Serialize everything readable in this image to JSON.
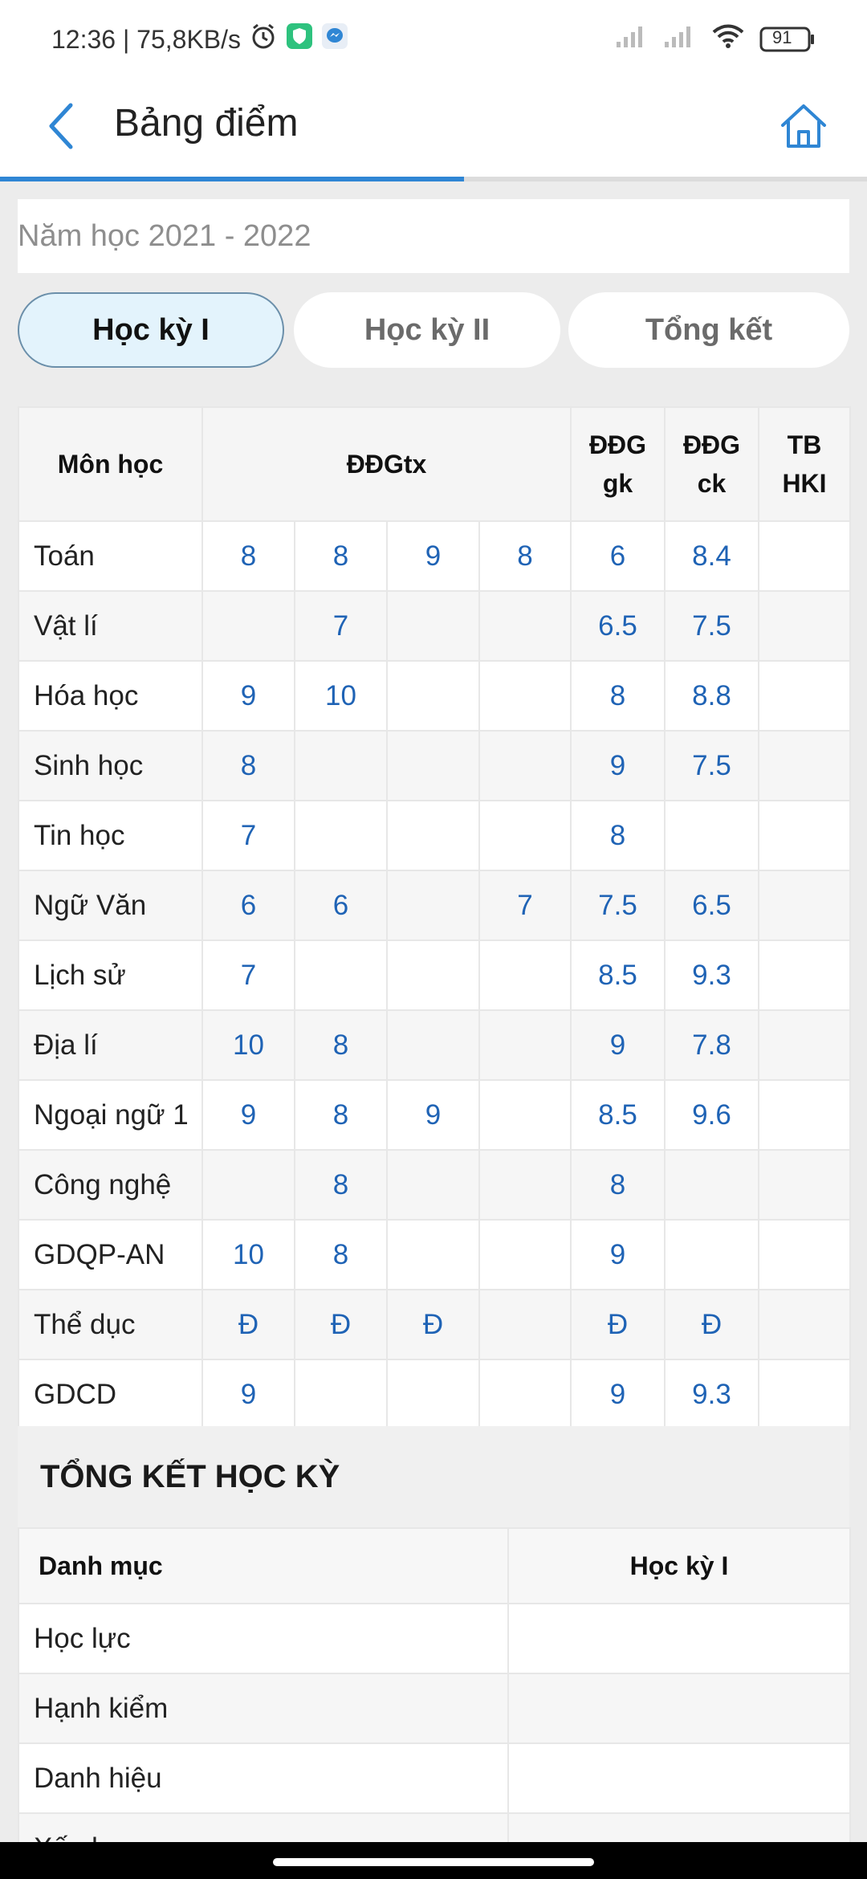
{
  "status_bar": {
    "time_and_speed": "12:36 | 75,8KB/s",
    "battery": "91"
  },
  "header": {
    "title": "Bảng điểm",
    "progress_fraction": 0.535
  },
  "year_select": {
    "value": "Năm học 2021 - 2022"
  },
  "tabs": [
    {
      "label": "Học kỳ I",
      "active": true
    },
    {
      "label": "Học kỳ II",
      "active": false
    },
    {
      "label": "Tổng kết",
      "active": false
    }
  ],
  "grades_table": {
    "headers": {
      "subject": "Môn học",
      "ddgtx": "ĐĐGtx",
      "ddggk": "ĐĐG gk",
      "ddgck": "ĐĐG ck",
      "tb": "TB HKI"
    },
    "rows": [
      {
        "subject": "Toán",
        "tx": [
          "8",
          "8",
          "9",
          "8"
        ],
        "gk": "6",
        "ck": "8.4",
        "tb": ""
      },
      {
        "subject": "Vật lí",
        "tx": [
          "",
          "7",
          "",
          ""
        ],
        "gk": "6.5",
        "ck": "7.5",
        "tb": ""
      },
      {
        "subject": "Hóa học",
        "tx": [
          "9",
          "10",
          "",
          ""
        ],
        "gk": "8",
        "ck": "8.8",
        "tb": ""
      },
      {
        "subject": "Sinh học",
        "tx": [
          "8",
          "",
          "",
          ""
        ],
        "gk": "9",
        "ck": "7.5",
        "tb": ""
      },
      {
        "subject": "Tin học",
        "tx": [
          "7",
          "",
          "",
          ""
        ],
        "gk": "8",
        "ck": "",
        "tb": ""
      },
      {
        "subject": "Ngữ Văn",
        "tx": [
          "6",
          "6",
          "",
          "7"
        ],
        "gk": "7.5",
        "ck": "6.5",
        "tb": ""
      },
      {
        "subject": "Lịch sử",
        "tx": [
          "7",
          "",
          "",
          ""
        ],
        "gk": "8.5",
        "ck": "9.3",
        "tb": ""
      },
      {
        "subject": "Địa lí",
        "tx": [
          "10",
          "8",
          "",
          ""
        ],
        "gk": "9",
        "ck": "7.8",
        "tb": ""
      },
      {
        "subject": "Ngoại ngữ 1",
        "tx": [
          "9",
          "8",
          "9",
          ""
        ],
        "gk": "8.5",
        "ck": "9.6",
        "tb": ""
      },
      {
        "subject": "Công nghệ",
        "tx": [
          "",
          "8",
          "",
          ""
        ],
        "gk": "8",
        "ck": "",
        "tb": ""
      },
      {
        "subject": "GDQP-AN",
        "tx": [
          "10",
          "8",
          "",
          ""
        ],
        "gk": "9",
        "ck": "",
        "tb": ""
      },
      {
        "subject": "Thể dục",
        "tx": [
          "Đ",
          "Đ",
          "Đ",
          ""
        ],
        "gk": "Đ",
        "ck": "Đ",
        "tb": ""
      },
      {
        "subject": "GDCD",
        "tx": [
          "9",
          "",
          "",
          ""
        ],
        "gk": "9",
        "ck": "9.3",
        "tb": ""
      }
    ]
  },
  "summary": {
    "title": "TỔNG KẾT HỌC KỲ",
    "headers": {
      "category": "Danh mục",
      "term": "Học kỳ I"
    },
    "rows": [
      {
        "label": "Học lực",
        "value": ""
      },
      {
        "label": "Hạnh kiểm",
        "value": ""
      },
      {
        "label": "Danh hiệu",
        "value": ""
      },
      {
        "label": "Xếp hạng",
        "value": ""
      }
    ]
  },
  "icons": {
    "back": "chevron-left-icon",
    "home": "home-icon",
    "alarm": "alarm-clock-icon",
    "shield_app": "shield-app-icon",
    "messenger": "messenger-icon",
    "signal": "signal-icon",
    "wifi": "wifi-icon",
    "battery": "battery-icon"
  },
  "colors": {
    "accent": "#2f86d4",
    "grade_text": "#1f63b5",
    "active_tab_bg": "#e3f3fc"
  }
}
